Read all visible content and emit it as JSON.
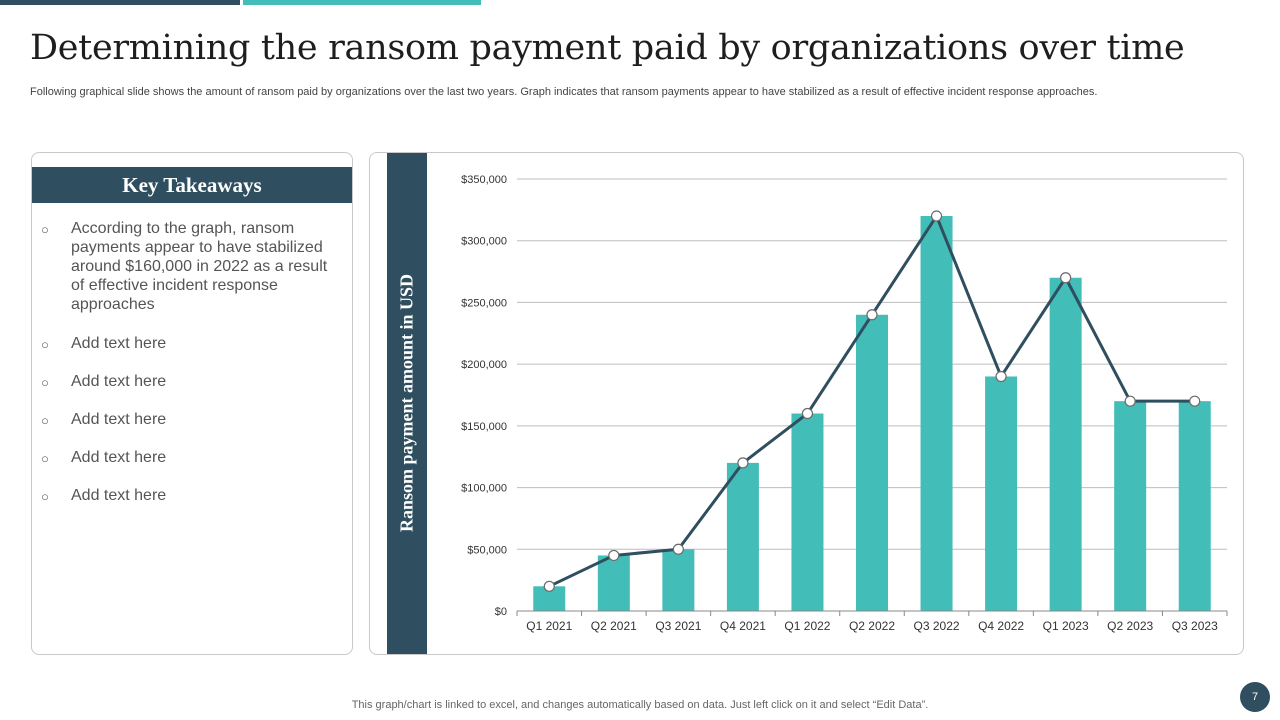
{
  "slide": {
    "title": "Determining the ransom payment paid by organizations over time",
    "subtitle": "Following graphical slide shows the amount of ransom paid by organizations over the last two years. Graph indicates that ransom payments appear to have stabilized as a result of effective incident response approaches.",
    "footer": "This graph/chart is linked to excel, and changes automatically based on data. Just left click on it and select “Edit Data”.",
    "page_number": "7"
  },
  "takeaways": {
    "heading": "Key Takeaways",
    "bullet": "○",
    "items": [
      "According to the graph, ransom payments appear to have stabilized around $160,000 in 2022 as a result of effective incident response approaches",
      "Add text here",
      "Add text here",
      "Add text here",
      "Add text here",
      "Add text here"
    ]
  },
  "colors": {
    "accent_dark": "#2f4e5f",
    "accent_teal": "#43bdb8"
  },
  "chart_data": {
    "type": "bar",
    "ylabel": "Ransom payment amount in USD",
    "xlabel": "",
    "categories": [
      "Q1 2021",
      "Q2 2021",
      "Q3 2021",
      "Q4 2021",
      "Q1 2022",
      "Q2 2022",
      "Q3 2022",
      "Q4 2022",
      "Q1 2023",
      "Q2 2023",
      "Q3 2023"
    ],
    "series": [
      {
        "type": "bar",
        "values": [
          20000,
          45000,
          50000,
          120000,
          160000,
          240000,
          320000,
          190000,
          270000,
          170000,
          170000
        ]
      },
      {
        "type": "line",
        "values": [
          20000,
          45000,
          50000,
          120000,
          160000,
          240000,
          320000,
          190000,
          270000,
          170000,
          170000
        ]
      }
    ],
    "ylim": [
      0,
      350000
    ],
    "yticks": [
      0,
      50000,
      100000,
      150000,
      200000,
      250000,
      300000,
      350000
    ],
    "ytick_labels": [
      "$0",
      "$50,000",
      "$100,000",
      "$150,000",
      "$200,000",
      "$250,000",
      "$300,000",
      "$350,000"
    ],
    "grid": true,
    "legend": "none"
  }
}
